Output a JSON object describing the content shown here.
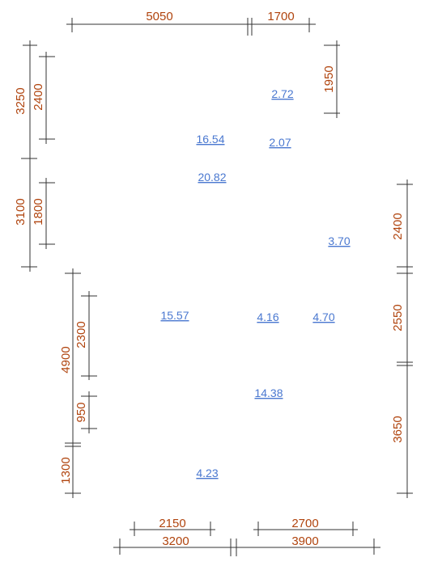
{
  "colors": {
    "dimension_text": "#b0440e",
    "area_text": "#4a78d0",
    "lines": "#333333",
    "background": "#ffffff"
  },
  "dimensions": {
    "top_left": "5050",
    "top_right": "1700",
    "right_upper": "1950",
    "left_outer_top": "3250",
    "left_inner_top": "2400",
    "left_outer_mid": "3100",
    "left_inner_mid": "1800",
    "right_mid": "2400",
    "mid_outer_left": "4900",
    "mid_inner_left": "2300",
    "mid_inner_left_small": "950",
    "bottom_left_vert": "1300",
    "right_lower_a": "2550",
    "right_lower_b": "3650",
    "bottom_inner_left": "2150",
    "bottom_inner_right": "2700",
    "bottom_outer_left": "3200",
    "bottom_outer_right": "3900"
  },
  "areas": {
    "a1": "2.72",
    "a2": "16.54",
    "a3": "2.07",
    "a4": "20.82",
    "a5": "3.70",
    "a6": "15.57",
    "a7": "4.16",
    "a8": "4.70",
    "a9": "14.38",
    "a10": "4.23"
  }
}
